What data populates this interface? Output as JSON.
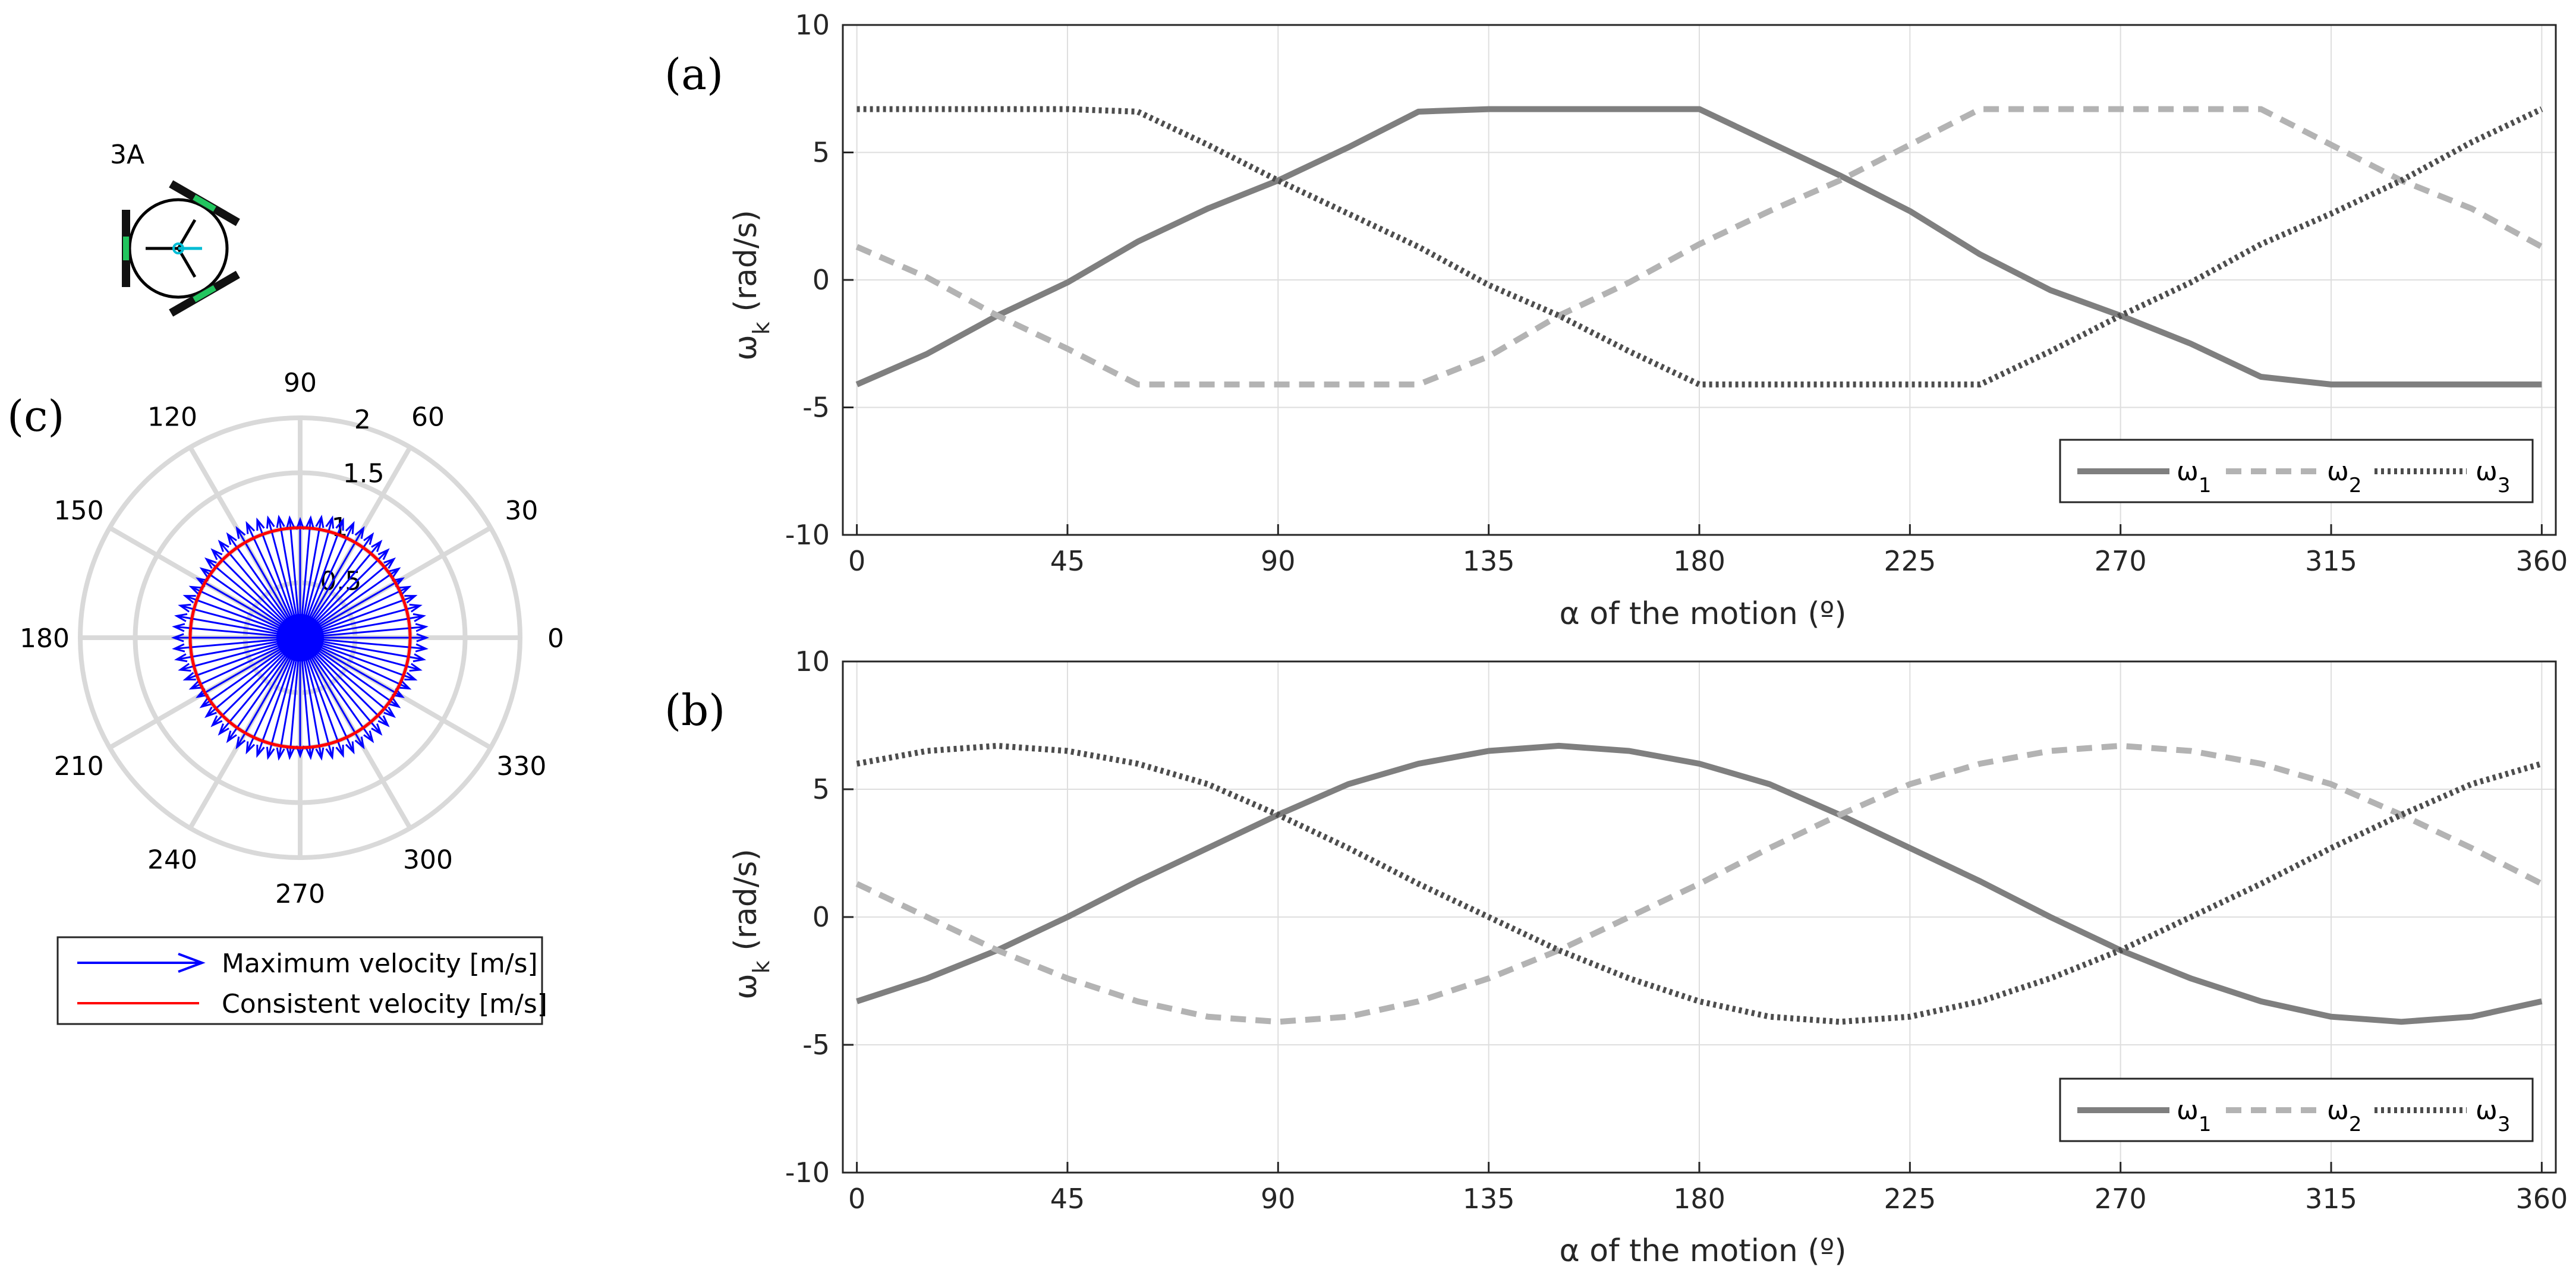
{
  "chart_data": [
    {
      "id": "a",
      "type": "line",
      "panel_label": "(a)",
      "xlabel": "α of the motion (º)",
      "ylabel_main": "ω",
      "ylabel_sub": "k",
      "ylabel_unit": " (rad/s)",
      "xlim": [
        -3,
        363
      ],
      "ylim": [
        -10,
        10
      ],
      "xticks": [
        0,
        45,
        90,
        135,
        180,
        225,
        270,
        315,
        360
      ],
      "yticks": [
        -10,
        -5,
        0,
        5,
        10
      ],
      "grid": true,
      "legend_position": "bottom-right, horizontal",
      "x": [
        0,
        15,
        30,
        45,
        60,
        75,
        90,
        105,
        120,
        135,
        150,
        165,
        180,
        195,
        210,
        225,
        240,
        255,
        270,
        285,
        300,
        315,
        330,
        345,
        360
      ],
      "series": [
        {
          "name": "ω",
          "name_sub": "1",
          "style": "solid",
          "color": "#7f7f7f",
          "values": [
            -4.1,
            -2.9,
            -1.4,
            -0.1,
            1.5,
            2.8,
            3.9,
            5.2,
            6.6,
            6.7,
            6.7,
            6.7,
            6.7,
            5.4,
            4.1,
            2.7,
            1.0,
            -0.4,
            -1.4,
            -2.5,
            -3.8,
            -4.1,
            -4.1,
            -4.1,
            -4.1
          ]
        },
        {
          "name": "ω",
          "name_sub": "2",
          "style": "dashed",
          "color": "#b3b3b3",
          "values": [
            1.3,
            0.1,
            -1.4,
            -2.7,
            -4.1,
            -4.1,
            -4.1,
            -4.1,
            -4.1,
            -3.0,
            -1.4,
            -0.1,
            1.4,
            2.7,
            3.9,
            5.3,
            6.7,
            6.7,
            6.7,
            6.7,
            6.7,
            5.3,
            3.9,
            2.8,
            1.3
          ]
        },
        {
          "name": "ω",
          "name_sub": "3",
          "style": "dotted",
          "color": "#4d4d4d",
          "values": [
            6.7,
            6.7,
            6.7,
            6.7,
            6.6,
            5.3,
            3.9,
            2.6,
            1.3,
            -0.2,
            -1.4,
            -2.8,
            -4.1,
            -4.1,
            -4.1,
            -4.1,
            -4.1,
            -2.8,
            -1.4,
            -0.1,
            1.4,
            2.6,
            3.9,
            5.4,
            6.7
          ]
        }
      ]
    },
    {
      "id": "b",
      "type": "line",
      "panel_label": "(b)",
      "xlabel": "α of the motion (º)",
      "ylabel_main": "ω",
      "ylabel_sub": "k",
      "ylabel_unit": " (rad/s)",
      "xlim": [
        -3,
        363
      ],
      "ylim": [
        -10,
        10
      ],
      "xticks": [
        0,
        45,
        90,
        135,
        180,
        225,
        270,
        315,
        360
      ],
      "yticks": [
        -10,
        -5,
        0,
        5,
        10
      ],
      "grid": true,
      "legend_position": "bottom-right, horizontal",
      "x": [
        0,
        15,
        30,
        45,
        60,
        75,
        90,
        105,
        120,
        135,
        150,
        165,
        180,
        195,
        210,
        225,
        240,
        255,
        270,
        285,
        300,
        315,
        330,
        345,
        360
      ],
      "series": [
        {
          "name": "ω",
          "name_sub": "1",
          "style": "solid",
          "color": "#7f7f7f",
          "values": [
            -3.3,
            -2.4,
            -1.3,
            0.0,
            1.4,
            2.7,
            4.0,
            5.2,
            6.0,
            6.5,
            6.7,
            6.5,
            6.0,
            5.2,
            4.0,
            2.7,
            1.4,
            0.0,
            -1.3,
            -2.4,
            -3.3,
            -3.9,
            -4.1,
            -3.9,
            -3.3
          ]
        },
        {
          "name": "ω",
          "name_sub": "2",
          "style": "dashed",
          "color": "#b3b3b3",
          "values": [
            1.3,
            0.0,
            -1.3,
            -2.4,
            -3.3,
            -3.9,
            -4.1,
            -3.9,
            -3.3,
            -2.4,
            -1.3,
            0.0,
            1.3,
            2.7,
            4.0,
            5.2,
            6.0,
            6.5,
            6.7,
            6.5,
            6.0,
            5.2,
            4.0,
            2.7,
            1.3
          ]
        },
        {
          "name": "ω",
          "name_sub": "3",
          "style": "dotted",
          "color": "#4d4d4d",
          "values": [
            6.0,
            6.5,
            6.7,
            6.5,
            6.0,
            5.2,
            4.0,
            2.7,
            1.3,
            0.0,
            -1.3,
            -2.4,
            -3.3,
            -3.9,
            -4.1,
            -3.9,
            -3.3,
            -2.4,
            -1.3,
            0.0,
            1.3,
            2.7,
            4.0,
            5.2,
            6.0
          ]
        }
      ]
    },
    {
      "id": "c",
      "type": "polar",
      "panel_label": "(c)",
      "robot_label": "3A",
      "angle_ticks": [
        "0",
        "30",
        "60",
        "90",
        "120",
        "150",
        "180",
        "210",
        "240",
        "270",
        "300",
        "330"
      ],
      "radial_ticks": [
        "0.5",
        "1",
        "1.5",
        "2"
      ],
      "rmax": 2,
      "series": [
        {
          "name": "Maximum velocity [m/s]",
          "color": "#0000ff",
          "kind": "arrows",
          "angle_step_deg": 5,
          "r_min": 1.0,
          "r_max": 1.15
        },
        {
          "name": "Consistent velocity [m/s]",
          "color": "#ff0000",
          "kind": "circle",
          "r": 1.0
        }
      ],
      "legend_position": "below"
    }
  ]
}
